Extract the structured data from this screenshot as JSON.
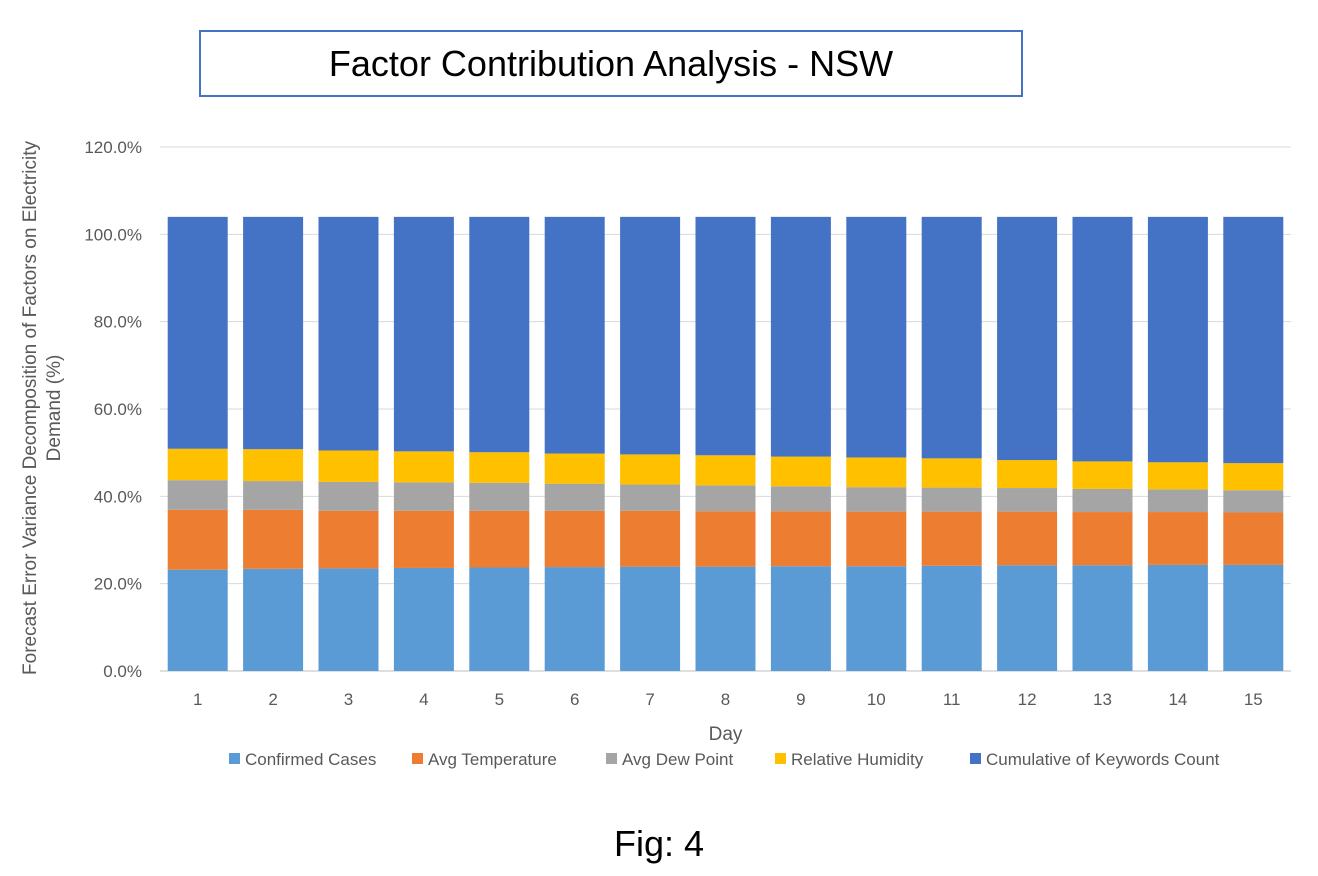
{
  "chart_data": {
    "type": "bar",
    "stacked": true,
    "title": "Factor Contribution Analysis - NSW",
    "xlabel": "Day",
    "ylabel": "Forecast Error Variance Decomposition of Factors on Electricity Demand (%)",
    "ylim": [
      0,
      120
    ],
    "yticks": [
      "0.0%",
      "20.0%",
      "40.0%",
      "60.0%",
      "80.0%",
      "100.0%",
      "120.0%"
    ],
    "grid": "horizontal",
    "legend_position": "bottom",
    "categories": [
      "1",
      "2",
      "3",
      "4",
      "5",
      "6",
      "7",
      "8",
      "9",
      "10",
      "11",
      "12",
      "13",
      "14",
      "15"
    ],
    "series": [
      {
        "name": "Confirmed Cases",
        "color": "#5B9BD5",
        "values": [
          23.2,
          23.4,
          23.5,
          23.6,
          23.7,
          23.8,
          23.9,
          23.9,
          24.0,
          24.0,
          24.1,
          24.2,
          24.2,
          24.3,
          24.3
        ]
      },
      {
        "name": "Avg Temperature",
        "color": "#ED7D31",
        "values": [
          13.7,
          13.5,
          13.2,
          13.1,
          13.0,
          12.9,
          12.8,
          12.7,
          12.6,
          12.5,
          12.4,
          12.3,
          12.2,
          12.1,
          12.0
        ]
      },
      {
        "name": "Avg Dew Point",
        "color": "#A5A5A5",
        "values": [
          6.8,
          6.6,
          6.6,
          6.5,
          6.4,
          6.2,
          6.0,
          5.9,
          5.7,
          5.6,
          5.5,
          5.4,
          5.3,
          5.2,
          5.1
        ]
      },
      {
        "name": "Relative Humidity",
        "color": "#FFC000",
        "values": [
          7.2,
          7.3,
          7.2,
          7.1,
          7.0,
          6.9,
          6.9,
          6.9,
          6.8,
          6.8,
          6.7,
          6.4,
          6.3,
          6.2,
          6.2
        ]
      },
      {
        "name": "Cumulative of Keywords Count",
        "color": "#4472C4",
        "values": [
          53.1,
          53.2,
          53.5,
          53.7,
          53.9,
          54.2,
          54.4,
          54.6,
          54.9,
          55.1,
          55.3,
          55.7,
          56.0,
          56.2,
          56.4
        ]
      }
    ]
  },
  "caption": "Fig: 4"
}
